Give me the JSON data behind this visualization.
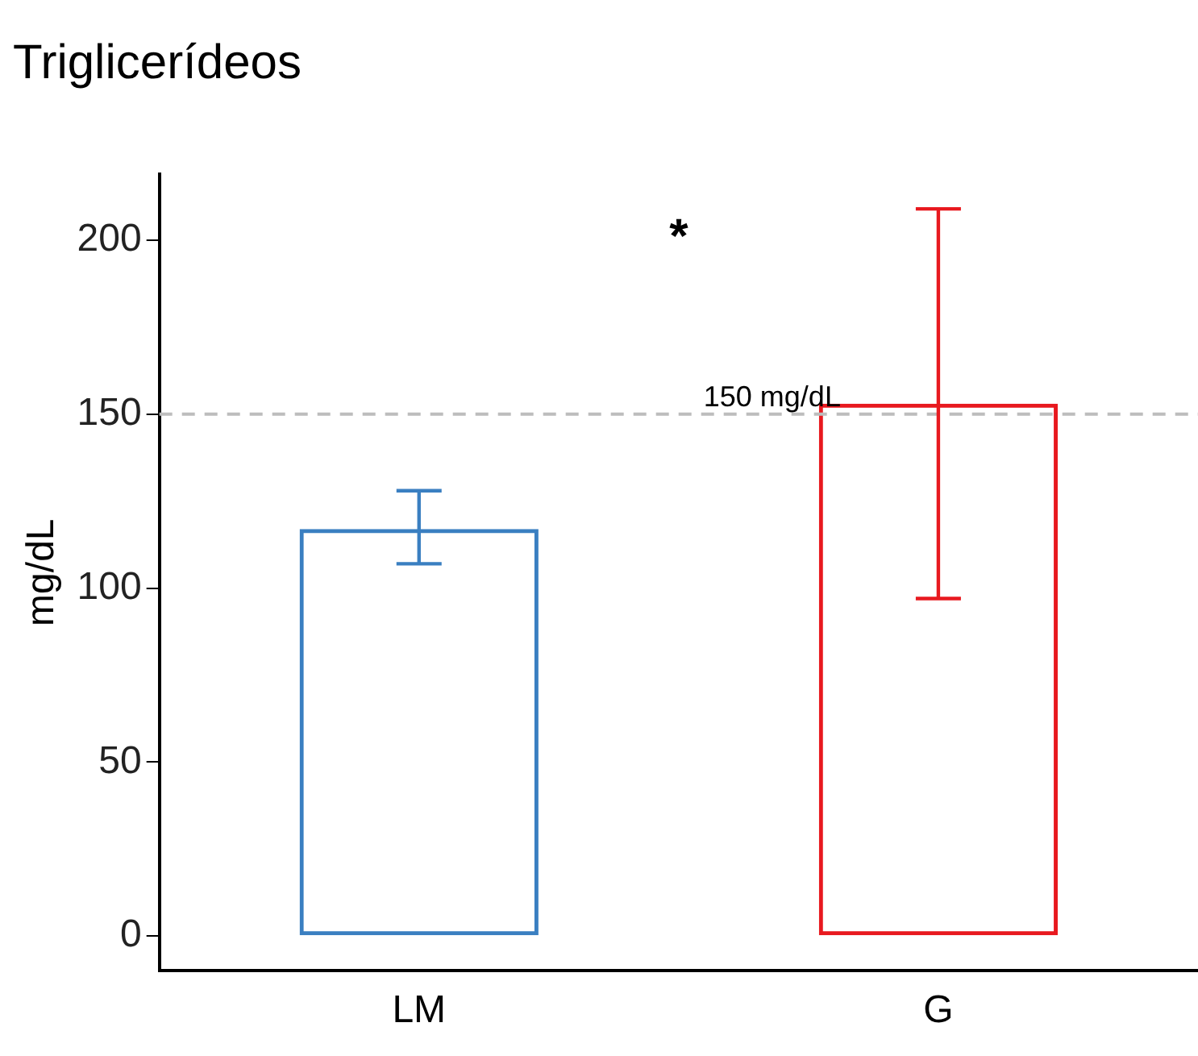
{
  "chart_data": {
    "type": "bar",
    "title": "Triglicerídeos",
    "ylabel": "mg/dL",
    "categories": [
      "LM",
      "G"
    ],
    "values": [
      117,
      153
    ],
    "colors": [
      "#3a7fc1",
      "#e8191f"
    ],
    "errors": [
      [
        107,
        128
      ],
      [
        97,
        209
      ]
    ],
    "ylim": [
      -10,
      219
    ],
    "yticks": [
      0,
      50,
      100,
      150,
      200
    ],
    "ref_lines": [
      {
        "axis": "y",
        "value": 150,
        "label": "150 mg/dL",
        "color": "#bdbdbd",
        "line_style": "dashed"
      }
    ],
    "annotations": [
      "*"
    ],
    "grid": false,
    "legend": false
  }
}
